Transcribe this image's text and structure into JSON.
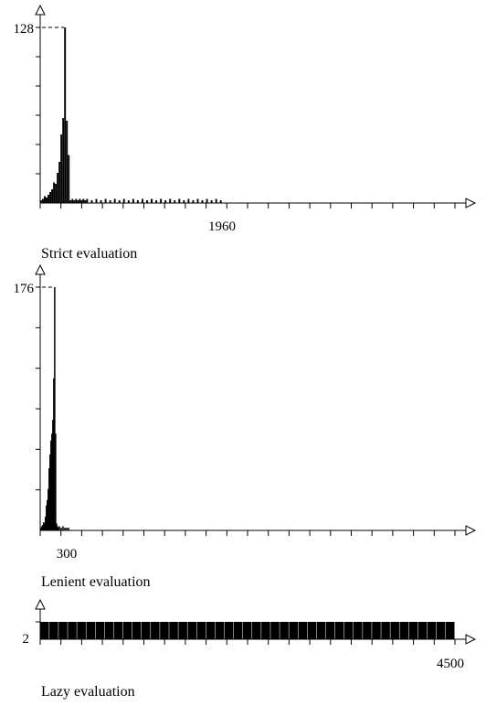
{
  "chart_data": [
    {
      "type": "bar",
      "caption": "Strict evaluation",
      "y_tick_label": "128",
      "x_tick_label": "1960",
      "ylim": [
        0,
        128
      ],
      "xlim": [
        0,
        4500
      ],
      "bar_color": "#000000",
      "series": [
        {
          "x": [
            0,
            20,
            40,
            60,
            80,
            100,
            120,
            140,
            160,
            180,
            200,
            220,
            240,
            260,
            280,
            300,
            320,
            340,
            360,
            380,
            400,
            420,
            440,
            460,
            480,
            500,
            550,
            600,
            650,
            700,
            750,
            800,
            850,
            900,
            950,
            1000,
            1050,
            1100,
            1150,
            1200,
            1250,
            1300,
            1350,
            1400,
            1450,
            1500,
            1550,
            1600,
            1650,
            1700,
            1750,
            1800,
            1850,
            1900,
            1950
          ],
          "values": [
            2,
            3,
            5,
            4,
            6,
            8,
            10,
            15,
            14,
            22,
            30,
            50,
            62,
            128,
            60,
            35,
            2,
            3,
            2,
            3,
            2,
            3,
            2,
            3,
            2,
            3,
            2,
            3,
            2,
            3,
            2,
            3,
            2,
            3,
            2,
            3,
            2,
            3,
            2,
            3,
            2,
            3,
            2,
            3,
            2,
            3,
            2,
            3,
            2,
            3,
            2,
            3,
            2,
            3,
            2
          ]
        }
      ]
    },
    {
      "type": "bar",
      "caption": "Lenient evaluation",
      "y_tick_label": "176",
      "x_tick_label": "300",
      "ylim": [
        0,
        176
      ],
      "xlim": [
        0,
        4500
      ],
      "bar_color": "#000000",
      "series": [
        {
          "x": [
            0,
            10,
            20,
            30,
            40,
            50,
            60,
            70,
            80,
            90,
            100,
            110,
            120,
            130,
            140,
            150,
            160,
            170,
            180,
            190,
            200,
            220,
            240,
            260,
            280,
            300
          ],
          "values": [
            2,
            3,
            4,
            6,
            5,
            10,
            18,
            22,
            30,
            45,
            55,
            65,
            70,
            80,
            110,
            176,
            70,
            5,
            3,
            2,
            3,
            2,
            3,
            2,
            2,
            2
          ]
        }
      ]
    },
    {
      "type": "bar",
      "caption": "Lazy evaluation",
      "y_tick_label": "2",
      "x_tick_label": "4500",
      "ylim": [
        0,
        2
      ],
      "xlim": [
        0,
        4500
      ],
      "bar_color": "#000000",
      "series": [
        {
          "x": [
            0,
            100,
            200,
            300,
            400,
            500,
            600,
            700,
            800,
            900,
            1000,
            1100,
            1200,
            1300,
            1400,
            1500,
            1600,
            1700,
            1800,
            1900,
            2000,
            2100,
            2200,
            2300,
            2400,
            2500,
            2600,
            2700,
            2800,
            2900,
            3000,
            3100,
            3200,
            3300,
            3400,
            3500,
            3600,
            3700,
            3800,
            3900,
            4000,
            4100,
            4200,
            4300,
            4400
          ],
          "values": [
            2,
            2,
            2,
            2,
            2,
            2,
            2,
            2,
            2,
            2,
            2,
            2,
            2,
            2,
            2,
            2,
            2,
            2,
            2,
            2,
            2,
            2,
            2,
            2,
            2,
            2,
            2,
            2,
            2,
            2,
            2,
            2,
            2,
            2,
            2,
            2,
            2,
            2,
            2,
            2,
            2,
            2,
            2,
            2,
            2
          ]
        }
      ]
    }
  ]
}
